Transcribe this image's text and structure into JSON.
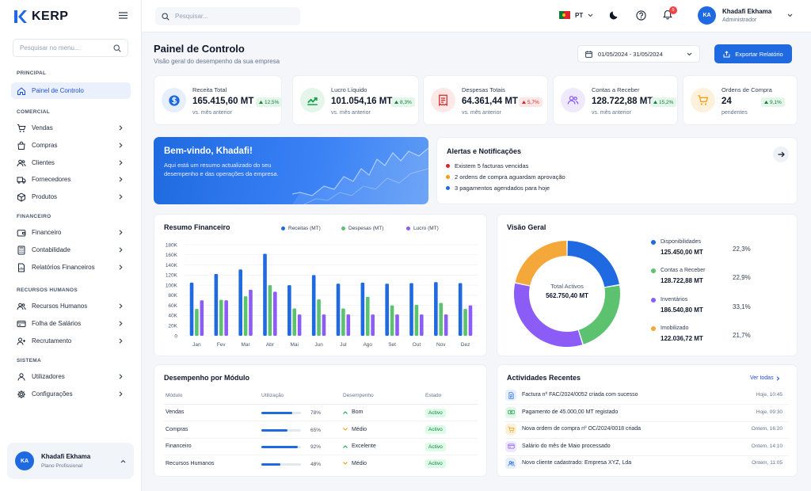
{
  "app": {
    "name": "KERP"
  },
  "sidebar": {
    "search_placeholder": "Pesquisar no menu...",
    "sections": [
      "PRINCIPAL",
      "COMERCIAL",
      "FINANCEIRO",
      "RECURSOS HUMANOS",
      "SISTEMA"
    ],
    "items": [
      {
        "label": "Painel de Controlo",
        "icon": "home-icon",
        "active": true
      },
      {
        "label": "Vendas",
        "icon": "cart-icon"
      },
      {
        "label": "Compras",
        "icon": "bag-icon"
      },
      {
        "label": "Clientes",
        "icon": "users-icon"
      },
      {
        "label": "Fornecedores",
        "icon": "truck-icon"
      },
      {
        "label": "Produtos",
        "icon": "box-icon"
      },
      {
        "label": "Financeiro",
        "icon": "wallet-icon"
      },
      {
        "label": "Contabilidade",
        "icon": "calculator-icon"
      },
      {
        "label": "Relatórios Financeiros",
        "icon": "report-icon"
      },
      {
        "label": "Recursos Humanos",
        "icon": "people-icon"
      },
      {
        "label": "Folha de Salários",
        "icon": "payroll-icon"
      },
      {
        "label": "Recrutamento",
        "icon": "user-plus-icon"
      },
      {
        "label": "Utilizadores",
        "icon": "user-icon"
      },
      {
        "label": "Configurações",
        "icon": "gear-icon"
      }
    ],
    "user": {
      "initials": "KA",
      "name": "Khadafi Ekhama",
      "plan": "Plano Profissional"
    }
  },
  "topbar": {
    "search_placeholder": "Pesquisar...",
    "language": "PT",
    "notifications_count": "5",
    "user": {
      "initials": "KA",
      "name": "Khadafi Ekhama",
      "role": "Administrador"
    }
  },
  "header": {
    "title": "Painel de Controlo",
    "subtitle": "Visão geral do desempenho da sua empresa",
    "date_range": "01/05/2024 - 31/05/2024",
    "export_label": "Exportar Relatório"
  },
  "kpis": [
    {
      "title": "Receita Total",
      "value": "165.415,60 MT",
      "change": "12,5%",
      "direction": "up",
      "sub": "vs. mês anterior",
      "icon": "money-icon",
      "color": "#1f6ae0",
      "bg": "#e7effd"
    },
    {
      "title": "Lucro Líquido",
      "value": "101.054,16 MT",
      "change": "8,3%",
      "direction": "up",
      "sub": "vs. mês anterior",
      "icon": "trend-up-icon",
      "color": "#16a34a",
      "bg": "#e4f6ea"
    },
    {
      "title": "Despesas Totais",
      "value": "64.361,44 MT",
      "change": "5,7%",
      "direction": "up-bad",
      "sub": "vs. mês anterior",
      "icon": "receipt-icon",
      "color": "#dc2626",
      "bg": "#fde8e8"
    },
    {
      "title": "Contas a Receber",
      "value": "128.722,88 MT",
      "change": "15,2%",
      "direction": "up",
      "sub": "vs. mês anterior",
      "icon": "people-icon",
      "color": "#8b5cf6",
      "bg": "#efe9fd"
    },
    {
      "title": "Ordens de Compra",
      "value": "24",
      "change": "9,1%",
      "direction": "up",
      "sub": "pendentes",
      "icon": "cart-icon",
      "color": "#f59e0b",
      "bg": "#fdf1dc"
    }
  ],
  "welcome": {
    "title": "Bem-vindo, Khadafi!",
    "text": "Aqui está um resumo actualizado do seu desempenho e das operações da empresa."
  },
  "alerts": {
    "title": "Alertas e Notificações",
    "items": [
      {
        "text": "Existem 5 facturas vencidas",
        "color": "#dc2626"
      },
      {
        "text": "2 ordens de compra aguardam aprovação",
        "color": "#f59e0b"
      },
      {
        "text": "3 pagamentos agendados para hoje",
        "color": "#1f6ae0"
      }
    ]
  },
  "financial": {
    "title": "Resumo Financeiro",
    "chart_data": {
      "type": "bar",
      "categories": [
        "Jan",
        "Fev",
        "Mar",
        "Abr",
        "Mai",
        "Jun",
        "Jul",
        "Ago",
        "Set",
        "Out",
        "Nov",
        "Dez"
      ],
      "series": [
        {
          "name": "Receitas (MT)",
          "color": "#1f6ae0",
          "values": [
            105000,
            122000,
            131000,
            162000,
            100000,
            120000,
            103000,
            105000,
            103000,
            104000,
            106000,
            104000
          ]
        },
        {
          "name": "Despesas (MT)",
          "color": "#5cc26f",
          "values": [
            53000,
            71000,
            78000,
            100000,
            54000,
            72000,
            54000,
            77000,
            60000,
            61000,
            65000,
            53000
          ]
        },
        {
          "name": "Lucro (MT)",
          "color": "#8b5cf6",
          "values": [
            70000,
            70000,
            91000,
            87000,
            42000,
            42000,
            42000,
            42000,
            42000,
            42000,
            42000,
            60000
          ]
        }
      ],
      "yticks": [
        "0",
        "20K",
        "40K",
        "60K",
        "80K",
        "100K",
        "120K",
        "140K",
        "160K",
        "180K"
      ],
      "ylim": [
        0,
        180000
      ]
    }
  },
  "overview": {
    "title": "Visão Geral",
    "center_label": "Total Activos",
    "center_value": "562.750,40 MT",
    "chart_data": {
      "type": "pie",
      "slices": [
        {
          "label": "Disponibilidades",
          "value": 125450.0,
          "display": "125.450,00 MT",
          "pct": "22,3%",
          "color": "#1f6ae0"
        },
        {
          "label": "Contas a Receber",
          "value": 128722.88,
          "display": "128.722,88 MT",
          "pct": "22,9%",
          "color": "#5cc26f"
        },
        {
          "label": "Inventários",
          "value": 186540.8,
          "display": "186.540,80 MT",
          "pct": "33,1%",
          "color": "#8b5cf6"
        },
        {
          "label": "Imobilizado",
          "value": 122036.72,
          "display": "122.036,72 MT",
          "pct": "21,7%",
          "color": "#f5a83a"
        }
      ]
    }
  },
  "modules": {
    "title": "Desempenho por Módulo",
    "headers": [
      "Módulo",
      "Utilização",
      "Desempenho",
      "Estado"
    ],
    "rows": [
      {
        "name": "Vendas",
        "usage": 78,
        "usage_label": "78%",
        "perf": "Bom",
        "perf_dir": "up",
        "status": "Activo"
      },
      {
        "name": "Compras",
        "usage": 65,
        "usage_label": "65%",
        "perf": "Médio",
        "perf_dir": "down",
        "status": "Activo"
      },
      {
        "name": "Financeiro",
        "usage": 92,
        "usage_label": "92%",
        "perf": "Excelente",
        "perf_dir": "up",
        "status": "Activo"
      },
      {
        "name": "Recursos Humanos",
        "usage": 48,
        "usage_label": "48%",
        "perf": "Médio",
        "perf_dir": "down",
        "status": "Activo"
      }
    ]
  },
  "activities": {
    "title": "Actividades Recentes",
    "see_all": "Ver todas",
    "items": [
      {
        "text": "Factura nº FAC/2024/0052 criada com sucesso",
        "time": "Hoje, 10:45",
        "icon": "document-icon",
        "color": "#1f6ae0",
        "bg": "#e7effd"
      },
      {
        "text": "Pagamento de 45.000,00 MT registado",
        "time": "Hoje, 09:30",
        "icon": "cash-icon",
        "color": "#16a34a",
        "bg": "#e4f6ea"
      },
      {
        "text": "Nova ordem de compra nº OC/2024/0018 criada",
        "time": "Ontem, 16:20",
        "icon": "cart-icon",
        "color": "#f59e0b",
        "bg": "#fdf1dc"
      },
      {
        "text": "Salário do mês de Maio processado",
        "time": "Ontem, 14:10",
        "icon": "payroll-icon",
        "color": "#8b5cf6",
        "bg": "#efe9fd"
      },
      {
        "text": "Novo cliente cadastrado: Empresa XYZ, Lda",
        "time": "Ontem, 11:05",
        "icon": "users-icon",
        "color": "#1f6ae0",
        "bg": "#e7effd"
      }
    ]
  }
}
